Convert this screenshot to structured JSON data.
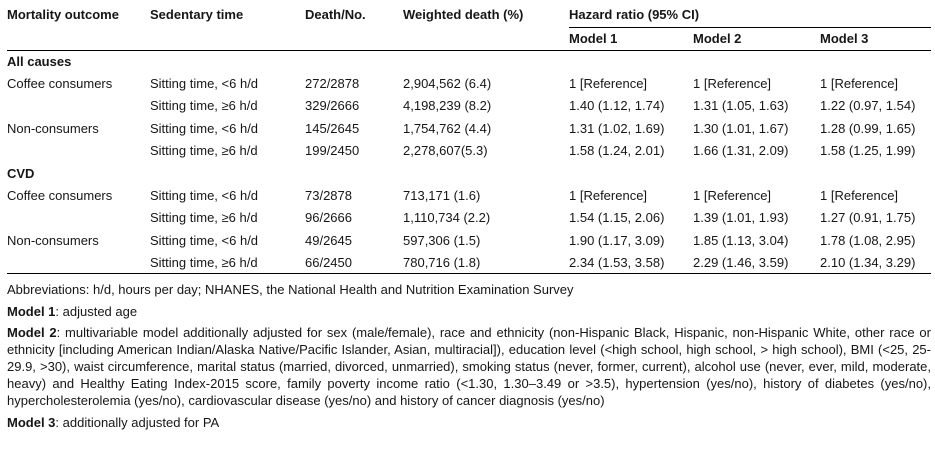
{
  "table": {
    "headers": {
      "mortality_outcome": "Mortality outcome",
      "sedentary_time": "Sedentary time",
      "death_no": "Death/No.",
      "weighted_death": "Weighted death (%)",
      "hazard_group": "Hazard ratio (95% CI)",
      "model1": "Model 1",
      "model2": "Model 2",
      "model3": "Model 3"
    },
    "rows": [
      {
        "type": "section",
        "label": "All causes"
      },
      {
        "type": "data",
        "cells": [
          "Coffee consumers",
          "Sitting time, <6 h/d",
          "272/2878",
          "2,904,562 (6.4)",
          "1 [Reference]",
          "1 [Reference]",
          "1 [Reference]"
        ]
      },
      {
        "type": "data",
        "cells": [
          "",
          "Sitting time, ≥6 h/d",
          "329/2666",
          "4,198,239 (8.2)",
          "1.40 (1.12, 1.74)",
          "1.31 (1.05, 1.63)",
          "1.22 (0.97, 1.54)"
        ]
      },
      {
        "type": "data",
        "cells": [
          "Non-consumers",
          "Sitting time, <6 h/d",
          "145/2645",
          "1,754,762 (4.4)",
          "1.31 (1.02, 1.69)",
          "1.30 (1.01, 1.67)",
          "1.28 (0.99, 1.65)"
        ]
      },
      {
        "type": "data",
        "cells": [
          "",
          "Sitting time, ≥6 h/d",
          "199/2450",
          "2,278,607(5.3)",
          "1.58 (1.24, 2.01)",
          "1.66 (1.31, 2.09)",
          "1.58 (1.25, 1.99)"
        ]
      },
      {
        "type": "section",
        "label": "CVD"
      },
      {
        "type": "data",
        "cells": [
          "Coffee consumers",
          "Sitting time, <6 h/d",
          "73/2878",
          "713,171 (1.6)",
          "1 [Reference]",
          "1 [Reference]",
          "1 [Reference]"
        ]
      },
      {
        "type": "data",
        "cells": [
          "",
          "Sitting time, ≥6 h/d",
          "96/2666",
          "1,110,734 (2.2)",
          "1.54 (1.15, 2.06)",
          "1.39 (1.01, 1.93)",
          "1.27 (0.91, 1.75)"
        ]
      },
      {
        "type": "data",
        "cells": [
          "Non-consumers",
          "Sitting time, <6 h/d",
          "49/2645",
          "597,306 (1.5)",
          "1.90 (1.17, 3.09)",
          "1.85 (1.13, 3.04)",
          "1.78 (1.08, 2.95)"
        ]
      },
      {
        "type": "data",
        "cells": [
          "",
          "Sitting time, ≥6 h/d",
          "66/2450",
          "780,716 (1.8)",
          "2.34 (1.53, 3.58)",
          "2.29 (1.46, 3.59)",
          "2.10 (1.34, 3.29)"
        ]
      }
    ]
  },
  "footnotes": [
    {
      "label": "",
      "text": "Abbreviations: h/d, hours per day; NHANES, the National Health and Nutrition Examination Survey"
    },
    {
      "label": "Model 1",
      "text": ": adjusted age"
    },
    {
      "label": "Model 2",
      "text": ": multivariable model additionally adjusted for sex (male/female), race and ethnicity (non-Hispanic Black, Hispanic, non-Hispanic White, other race or ethnicity [including American Indian/Alaska Native/Pacific Islander, Asian, multiracial]), education level (<high school, high school, > high school), BMI (<25, 25-29.9, >30), waist circumference, marital status (married, divorced, unmarried), smoking status (never, former, current), alcohol use (never, ever, mild, moderate, heavy) and Healthy Eating Index-2015 score, family poverty income ratio (<1.30, 1.30–3.49 or >3.5), hypertension (yes/no), history of diabetes (yes/no), hypercholesterolemia (yes/no), cardiovascular disease (yes/no) and history of cancer diagnosis (yes/no)"
    },
    {
      "label": "Model 3",
      "text": ": additionally adjusted for PA"
    }
  ]
}
